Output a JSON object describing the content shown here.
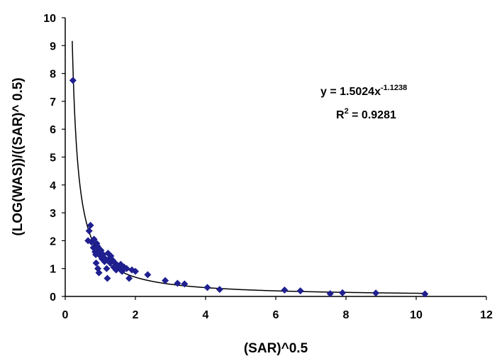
{
  "chart_data": {
    "type": "scatter",
    "title": "",
    "xlabel": "(SAR)^0.5",
    "ylabel": "(LOG(WAS))/((SAR)^ 0.5)",
    "xlim": [
      0,
      12
    ],
    "ylim": [
      0,
      10
    ],
    "x_ticks": [
      "0",
      "2",
      "4",
      "6",
      "8",
      "10",
      "12"
    ],
    "y_ticks": [
      "0",
      "1",
      "2",
      "3",
      "4",
      "5",
      "6",
      "7",
      "8",
      "9",
      "10"
    ],
    "grid": false,
    "legend": "none",
    "marker_color": "#1f1f8f",
    "points": [
      [
        0.22,
        7.75
      ],
      [
        0.65,
        2.0
      ],
      [
        0.68,
        2.35
      ],
      [
        0.72,
        2.55
      ],
      [
        0.75,
        1.95
      ],
      [
        0.8,
        1.75
      ],
      [
        0.82,
        2.05
      ],
      [
        0.85,
        1.6
      ],
      [
        0.87,
        1.5
      ],
      [
        0.88,
        1.2
      ],
      [
        0.9,
        1.9
      ],
      [
        0.92,
        1.8
      ],
      [
        0.93,
        1.0
      ],
      [
        0.95,
        1.55
      ],
      [
        0.96,
        0.85
      ],
      [
        0.98,
        1.7
      ],
      [
        1.0,
        1.45
      ],
      [
        1.02,
        1.65
      ],
      [
        1.05,
        1.35
      ],
      [
        1.08,
        1.5
      ],
      [
        1.1,
        1.4
      ],
      [
        1.12,
        1.25
      ],
      [
        1.15,
        1.3
      ],
      [
        1.18,
        1.0
      ],
      [
        1.2,
        0.65
      ],
      [
        1.22,
        1.55
      ],
      [
        1.25,
        1.35
      ],
      [
        1.28,
        1.2
      ],
      [
        1.3,
        1.45
      ],
      [
        1.35,
        1.3
      ],
      [
        1.38,
        1.05
      ],
      [
        1.42,
        1.2
      ],
      [
        1.45,
        0.95
      ],
      [
        1.5,
        1.1
      ],
      [
        1.55,
        1.0
      ],
      [
        1.58,
        1.15
      ],
      [
        1.62,
        0.9
      ],
      [
        1.68,
        1.05
      ],
      [
        1.75,
        1.0
      ],
      [
        1.82,
        0.65
      ],
      [
        1.9,
        0.95
      ],
      [
        2.0,
        0.9
      ],
      [
        2.35,
        0.78
      ],
      [
        2.85,
        0.57
      ],
      [
        3.2,
        0.47
      ],
      [
        3.4,
        0.45
      ],
      [
        4.05,
        0.32
      ],
      [
        4.4,
        0.25
      ],
      [
        6.25,
        0.23
      ],
      [
        6.7,
        0.2
      ],
      [
        7.55,
        0.1
      ],
      [
        7.9,
        0.13
      ],
      [
        8.85,
        0.12
      ],
      [
        10.25,
        0.09
      ]
    ],
    "trendline": {
      "type": "power",
      "a": 1.5024,
      "b": -1.1238,
      "x_range": [
        0.2,
        10.3
      ]
    },
    "annotations": {
      "equation_main": "y = 1.5024x",
      "equation_exp": "-1.1238",
      "r2_label": "R",
      "r2_sup": "2",
      "r2_value": " = 0.9281"
    }
  }
}
